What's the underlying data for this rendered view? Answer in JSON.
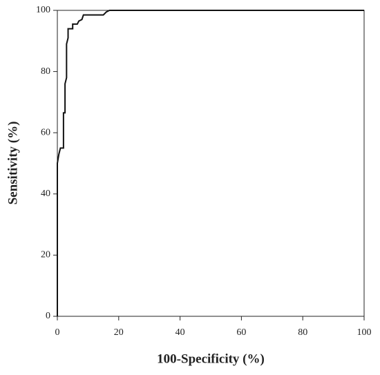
{
  "chart_data": {
    "type": "line",
    "x_label": "100-Specificity (%)",
    "y_label": "Sensitivity (%)",
    "x": [
      0,
      0,
      0.5,
      1,
      2,
      2,
      2.5,
      2.5,
      3,
      3,
      3.5,
      3.5,
      5,
      5,
      6.5,
      7,
      8,
      8.5,
      15,
      16,
      17,
      100
    ],
    "values": [
      0,
      50,
      53,
      55,
      55,
      66.5,
      66.5,
      76,
      78,
      89,
      91,
      94,
      94,
      95.5,
      95.5,
      96.5,
      97,
      98.5,
      98.5,
      99.5,
      100,
      100
    ],
    "color": "#111111",
    "xlim": [
      0,
      100
    ],
    "ylim": [
      0,
      100
    ],
    "xticks": [
      0,
      20,
      40,
      60,
      80,
      100
    ],
    "yticks": [
      0,
      20,
      40,
      60,
      80,
      100
    ]
  }
}
